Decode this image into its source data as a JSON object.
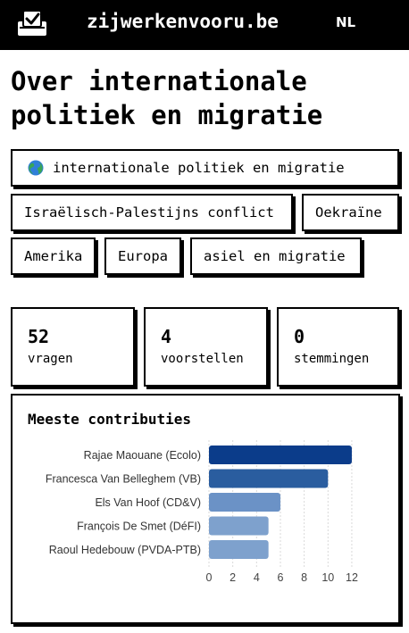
{
  "header": {
    "site_name": "zijwerkenvooru.be",
    "language": "NL",
    "logo_icon": "ballot-box-check-icon"
  },
  "page_title": "Over internationale politiek en migratie",
  "topic": {
    "label": "internationale politiek en migratie",
    "icon": "globe-icon"
  },
  "subtopics": [
    {
      "label": "Israëlisch-Palestijns conflict"
    },
    {
      "label": "Oekraïne"
    },
    {
      "label": "Amerika"
    },
    {
      "label": "Europa"
    },
    {
      "label": "asiel en migratie"
    }
  ],
  "stats": [
    {
      "value": "52",
      "label": "vragen"
    },
    {
      "value": "4",
      "label": "voorstellen"
    },
    {
      "value": "0",
      "label": "stemmingen"
    }
  ],
  "chart": {
    "title": "Meeste contributies"
  },
  "chart_data": {
    "type": "bar",
    "orientation": "horizontal",
    "title": "Meeste contributies",
    "categories": [
      "Rajae Maouane (Ecolo)",
      "Francesca Van Belleghem (VB)",
      "Els Van Hoof (CD&V)",
      "François De Smet (DéFI)",
      "Raoul Hedebouw (PVDA-PTB)"
    ],
    "values": [
      12,
      10,
      6,
      5,
      5
    ],
    "colors": [
      "#0b3c8a",
      "#2a5d9f",
      "#6b92c6",
      "#7ea1cd",
      "#7ea1cd"
    ],
    "xlim": [
      0,
      12
    ],
    "xticks": [
      "0",
      "2",
      "4",
      "6",
      "8",
      "10",
      "12"
    ],
    "grid": "vertical dashed",
    "legend": "none"
  }
}
